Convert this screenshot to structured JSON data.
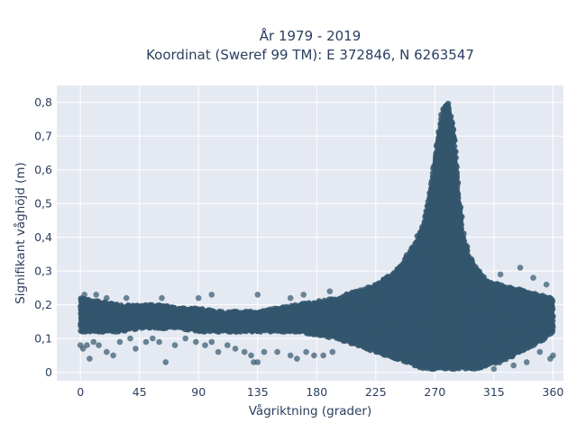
{
  "chart_data": {
    "type": "scatter",
    "title_line1": "År 1979 - 2019",
    "title_line2": "Koordinat (Sweref 99 TM): E 372846, N 6263547",
    "xlabel": "Vågriktning (grader)",
    "ylabel": "Signifikant våghöjd (m)",
    "xlim": [
      -18,
      368
    ],
    "ylim": [
      -0.025,
      0.85
    ],
    "x_ticks": [
      0,
      45,
      90,
      135,
      180,
      225,
      270,
      315,
      360
    ],
    "x_tick_labels": [
      "0",
      "45",
      "90",
      "135",
      "180",
      "225",
      "270",
      "315",
      "360"
    ],
    "y_ticks": [
      0,
      0.1,
      0.2,
      0.3,
      0.4,
      0.5,
      0.6,
      0.7,
      0.8
    ],
    "y_tick_labels": [
      "0",
      "0,1",
      "0,2",
      "0,3",
      "0,4",
      "0,5",
      "0,6",
      "0,7",
      "0,8"
    ],
    "grid": true,
    "background_color": "#e5e9f2",
    "marker_color": "#33566d",
    "series": [
      {
        "band_x": [
          0,
          15,
          30,
          45,
          60,
          75,
          90,
          105,
          120,
          135,
          150,
          165,
          180,
          195,
          210,
          225,
          240,
          255,
          262,
          267,
          272,
          276,
          280,
          284,
          288,
          292,
          297,
          303,
          310,
          320,
          330,
          340,
          350,
          360
        ],
        "band_y_low": [
          0.12,
          0.12,
          0.12,
          0.13,
          0.13,
          0.13,
          0.12,
          0.12,
          0.12,
          0.12,
          0.12,
          0.12,
          0.11,
          0.1,
          0.08,
          0.06,
          0.04,
          0.02,
          0.01,
          0.01,
          0.01,
          0.01,
          0.01,
          0.01,
          0.01,
          0.01,
          0.01,
          0.01,
          0.02,
          0.03,
          0.05,
          0.07,
          0.09,
          0.12
        ],
        "band_y_high": [
          0.22,
          0.21,
          0.2,
          0.2,
          0.2,
          0.19,
          0.19,
          0.18,
          0.18,
          0.18,
          0.19,
          0.2,
          0.21,
          0.22,
          0.24,
          0.26,
          0.3,
          0.38,
          0.45,
          0.55,
          0.68,
          0.78,
          0.8,
          0.72,
          0.52,
          0.4,
          0.34,
          0.3,
          0.27,
          0.26,
          0.25,
          0.24,
          0.23,
          0.22
        ],
        "outliers": [
          [
            0,
            0.08
          ],
          [
            2,
            0.07
          ],
          [
            5,
            0.08
          ],
          [
            7,
            0.04
          ],
          [
            10,
            0.09
          ],
          [
            14,
            0.08
          ],
          [
            20,
            0.06
          ],
          [
            25,
            0.05
          ],
          [
            30,
            0.09
          ],
          [
            38,
            0.1
          ],
          [
            42,
            0.07
          ],
          [
            50,
            0.09
          ],
          [
            55,
            0.1
          ],
          [
            60,
            0.09
          ],
          [
            65,
            0.03
          ],
          [
            72,
            0.08
          ],
          [
            80,
            0.1
          ],
          [
            88,
            0.09
          ],
          [
            95,
            0.08
          ],
          [
            100,
            0.09
          ],
          [
            105,
            0.06
          ],
          [
            112,
            0.08
          ],
          [
            118,
            0.07
          ],
          [
            125,
            0.06
          ],
          [
            130,
            0.05
          ],
          [
            132,
            0.03
          ],
          [
            135,
            0.03
          ],
          [
            140,
            0.06
          ],
          [
            150,
            0.06
          ],
          [
            160,
            0.05
          ],
          [
            165,
            0.04
          ],
          [
            172,
            0.06
          ],
          [
            178,
            0.05
          ],
          [
            185,
            0.05
          ],
          [
            192,
            0.06
          ],
          [
            3,
            0.23
          ],
          [
            12,
            0.23
          ],
          [
            20,
            0.22
          ],
          [
            35,
            0.22
          ],
          [
            62,
            0.22
          ],
          [
            90,
            0.22
          ],
          [
            100,
            0.23
          ],
          [
            135,
            0.23
          ],
          [
            160,
            0.22
          ],
          [
            170,
            0.23
          ],
          [
            190,
            0.24
          ],
          [
            335,
            0.31
          ],
          [
            320,
            0.29
          ],
          [
            345,
            0.28
          ],
          [
            355,
            0.26
          ],
          [
            360,
            0.05
          ],
          [
            358,
            0.04
          ],
          [
            350,
            0.06
          ],
          [
            340,
            0.03
          ],
          [
            330,
            0.02
          ],
          [
            315,
            0.01
          ],
          [
            300,
            0.01
          ],
          [
            285,
            0.01
          ]
        ]
      }
    ]
  }
}
